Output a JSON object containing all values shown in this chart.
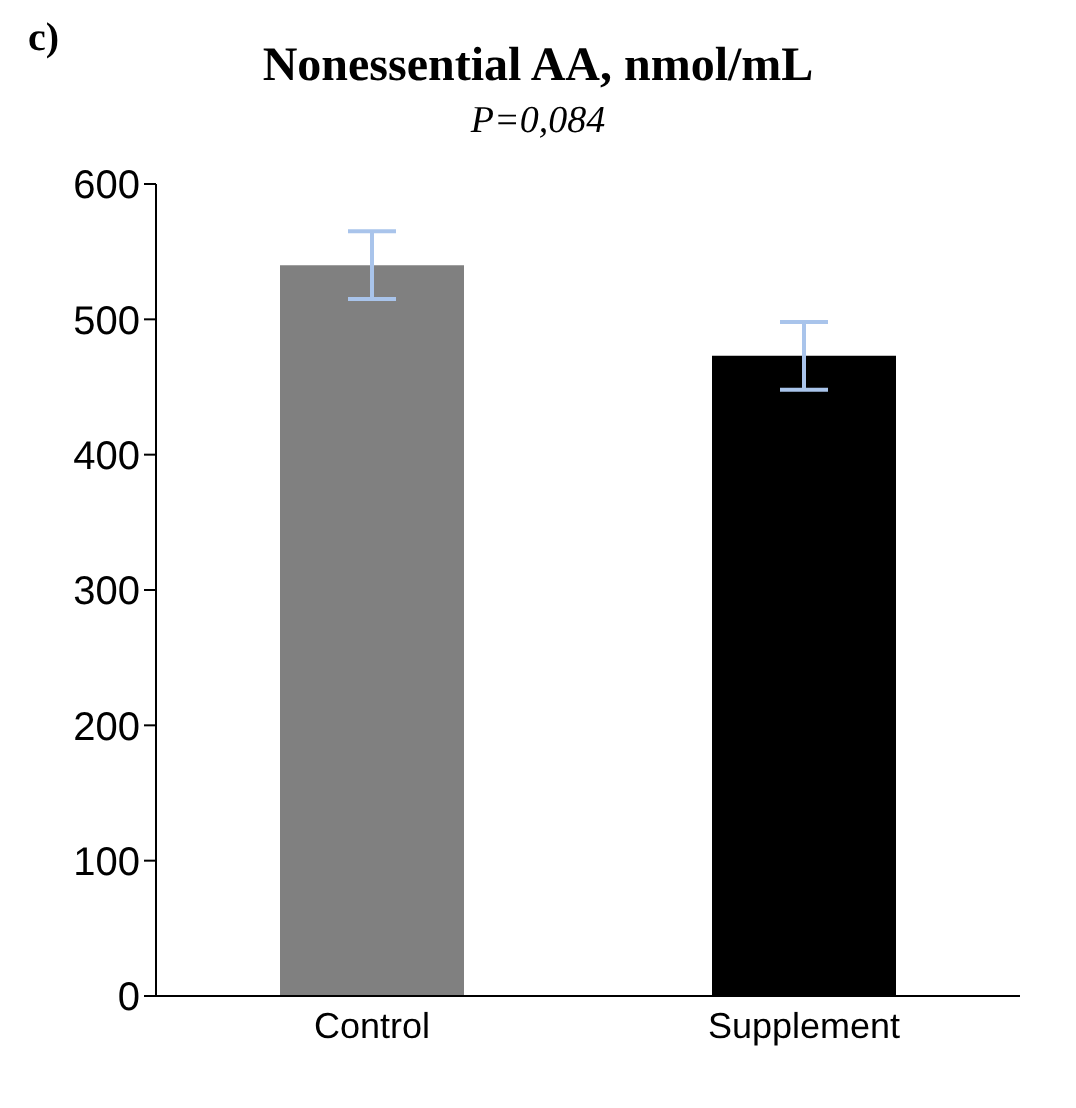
{
  "chart_data": {
    "type": "bar",
    "title": "Nonessential AA, nmol/mL",
    "subtitle": "P=0,084",
    "annotations": [
      "c)"
    ],
    "categories": [
      "Control",
      "Supplement"
    ],
    "values": [
      540,
      473
    ],
    "colors": [
      "#808080",
      "#000000"
    ],
    "errors": [
      25,
      25
    ],
    "ylim": [
      0,
      600
    ],
    "yticks": [
      0,
      100,
      200,
      300,
      400,
      500,
      600
    ],
    "grid": false,
    "legend": false
  }
}
